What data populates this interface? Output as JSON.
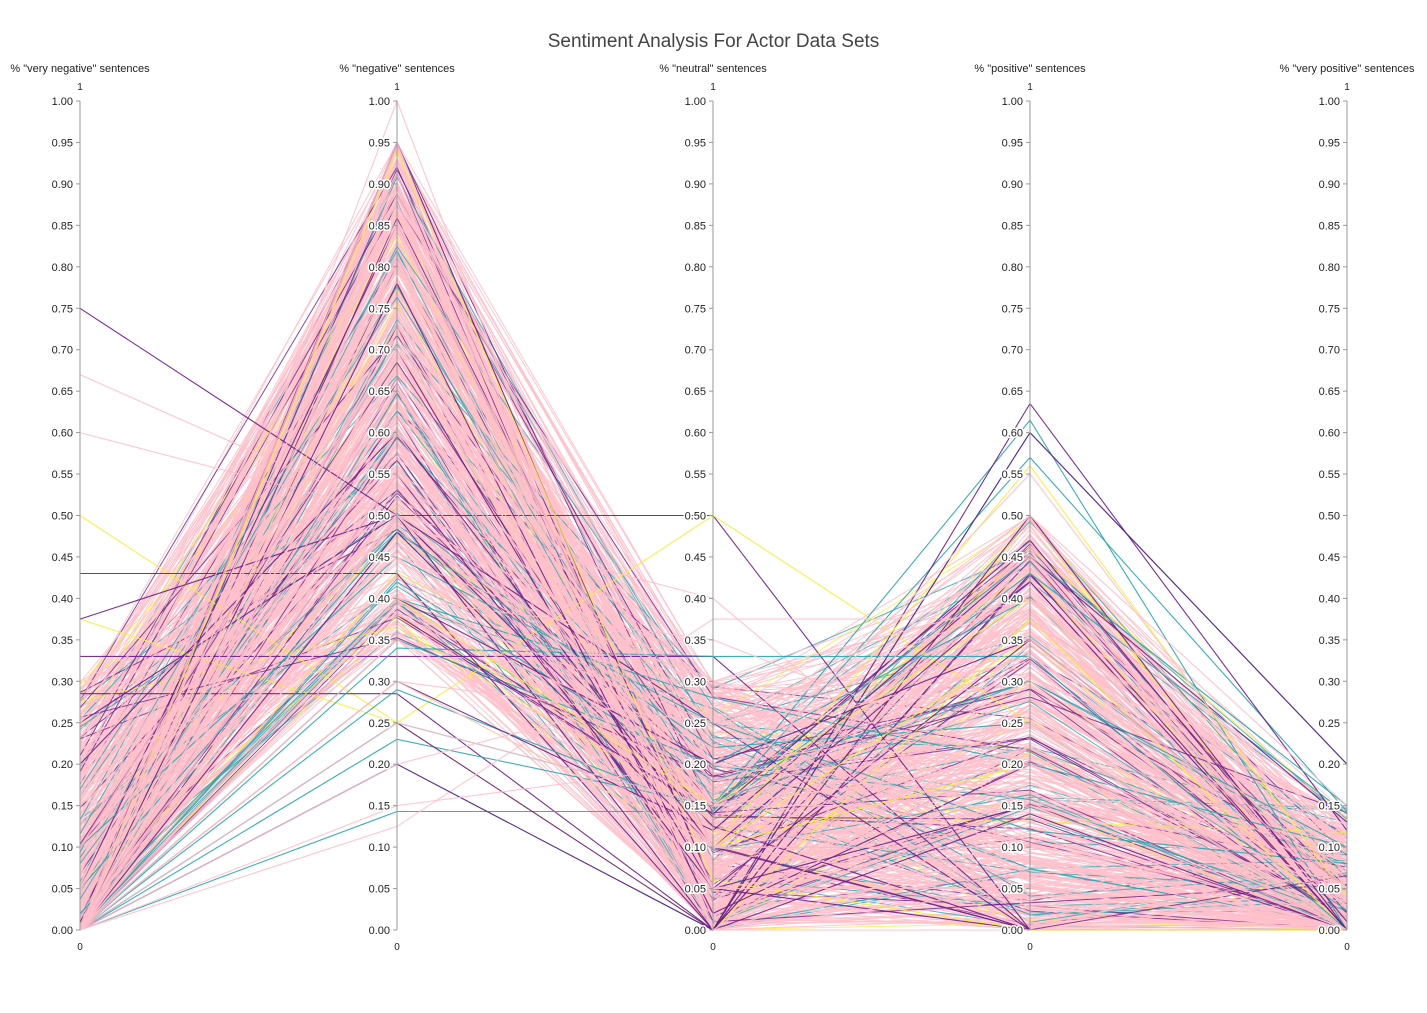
{
  "chart_data": {
    "type": "parallel_coordinates",
    "title": "Sentiment Analysis For Actor Data Sets",
    "dimensions": [
      {
        "label": "% \"very negative\" sentences",
        "range": [
          0,
          1
        ],
        "range_labels": [
          "0",
          "1"
        ]
      },
      {
        "label": "% \"negative\" sentences",
        "range": [
          0,
          1
        ],
        "range_labels": [
          "0",
          "1"
        ]
      },
      {
        "label": "% \"neutral\" sentences",
        "range": [
          0,
          1
        ],
        "range_labels": [
          "0",
          "1"
        ]
      },
      {
        "label": "% \"positive\" sentences",
        "range": [
          0,
          1
        ],
        "range_labels": [
          "0",
          "1"
        ]
      },
      {
        "label": "% \"very positive\" sentences",
        "range": [
          0,
          1
        ],
        "range_labels": [
          "0",
          "1"
        ]
      }
    ],
    "ticks": [
      "0.00",
      "0.05",
      "0.10",
      "0.15",
      "0.20",
      "0.25",
      "0.30",
      "0.35",
      "0.40",
      "0.45",
      "0.50",
      "0.55",
      "0.60",
      "0.65",
      "0.70",
      "0.75",
      "0.80",
      "0.85",
      "0.90",
      "0.95",
      "1.00"
    ],
    "colors": {
      "purple": "#6a1b8a",
      "teal": "#26a6b0",
      "yellow": "#f5f03a",
      "pink": "#ffc0cb"
    },
    "lines": [
      {
        "color": "purple",
        "values": [
          0.75,
          0.5,
          0.5,
          0.0,
          0.0
        ]
      },
      {
        "color": "pink",
        "values": [
          0.67,
          0.5,
          0.3,
          0.1,
          0.05
        ]
      },
      {
        "color": "pink",
        "values": [
          0.6,
          0.5,
          0.4,
          0.08,
          0.02
        ]
      },
      {
        "color": "yellow",
        "values": [
          0.5,
          0.25,
          0.5,
          0.25,
          0.0
        ]
      },
      {
        "color": "purple",
        "values": [
          0.43,
          0.43,
          0.0,
          0.14,
          0.0
        ]
      },
      {
        "color": "yellow",
        "values": [
          0.375,
          0.25,
          0.0,
          0.375,
          0.0
        ]
      },
      {
        "color": "purple",
        "values": [
          0.375,
          0.5,
          0.125,
          0.0,
          0.0
        ]
      },
      {
        "color": "purple",
        "values": [
          0.33,
          0.33,
          0.33,
          0.0,
          0.0
        ]
      },
      {
        "color": "purple",
        "values": [
          0.285,
          0.285,
          0.0,
          0.43,
          0.0
        ]
      },
      {
        "color": "purple",
        "values": [
          0.25,
          0.5,
          0.25,
          0.0,
          0.0
        ]
      },
      {
        "color": "teal",
        "values": [
          0.0,
          0.2,
          0.0,
          0.6,
          0.2
        ]
      },
      {
        "color": "teal",
        "values": [
          0.0,
          0.143,
          0.143,
          0.57,
          0.143
        ]
      },
      {
        "color": "teal",
        "values": [
          0.0,
          0.23,
          0.15,
          0.615,
          0.0
        ]
      },
      {
        "color": "purple",
        "values": [
          0.0,
          0.25,
          0.0,
          0.635,
          0.12
        ]
      },
      {
        "color": "purple",
        "values": [
          0.0,
          0.5,
          0.0,
          0.5,
          0.0
        ]
      },
      {
        "color": "pink",
        "values": [
          0.0,
          0.125,
          0.375,
          0.375,
          0.125
        ]
      },
      {
        "color": "pink",
        "values": [
          0.0,
          1.0,
          0.0,
          0.0,
          0.0
        ]
      },
      {
        "color": "purple",
        "values": [
          0.0,
          0.95,
          0.05,
          0.0,
          0.0
        ]
      },
      {
        "color": "purple",
        "values": [
          0.05,
          0.85,
          0.1,
          0.0,
          0.0
        ]
      },
      {
        "color": "yellow",
        "values": [
          0.0,
          0.94,
          0.06,
          0.0,
          0.0
        ]
      },
      {
        "color": "teal",
        "values": [
          0.0,
          0.34,
          0.33,
          0.33,
          0.0
        ]
      },
      {
        "color": "teal",
        "values": [
          0.05,
          0.48,
          0.22,
          0.25,
          0.0
        ]
      },
      {
        "color": "teal",
        "values": [
          0.1,
          0.45,
          0.25,
          0.12,
          0.08
        ]
      },
      {
        "color": "teal",
        "values": [
          0.0,
          0.42,
          0.18,
          0.3,
          0.1
        ]
      },
      {
        "color": "teal",
        "values": [
          0.0,
          0.29,
          0.14,
          0.43,
          0.14
        ]
      },
      {
        "color": "teal",
        "values": [
          0.0,
          0.35,
          0.2,
          0.4,
          0.05
        ]
      },
      {
        "color": "teal",
        "values": [
          0.02,
          0.4,
          0.28,
          0.2,
          0.1
        ]
      },
      {
        "color": "teal",
        "values": [
          0.0,
          0.25,
          0.15,
          0.45,
          0.15
        ]
      },
      {
        "color": "yellow",
        "values": [
          0.0,
          0.7,
          0.1,
          0.2,
          0.0
        ]
      },
      {
        "color": "yellow",
        "values": [
          0.0,
          0.4,
          0.15,
          0.4,
          0.05
        ]
      },
      {
        "color": "yellow",
        "values": [
          0.0,
          0.5,
          0.1,
          0.35,
          0.05
        ]
      },
      {
        "color": "yellow",
        "values": [
          0.0,
          0.3,
          0.1,
          0.56,
          0.04
        ]
      },
      {
        "color": "yellow",
        "values": [
          0.0,
          0.8,
          0.1,
          0.1,
          0.0
        ]
      },
      {
        "color": "purple",
        "values": [
          0.0,
          0.4,
          0.2,
          0.35,
          0.05
        ]
      },
      {
        "color": "purple",
        "values": [
          0.0,
          0.48,
          0.1,
          0.42,
          0.0
        ]
      },
      {
        "color": "purple",
        "values": [
          0.1,
          0.7,
          0.05,
          0.15,
          0.0
        ]
      },
      {
        "color": "purple",
        "values": [
          0.2,
          0.6,
          0.1,
          0.1,
          0.0
        ]
      },
      {
        "color": "purple",
        "values": [
          0.0,
          0.38,
          0.14,
          0.47,
          0.01
        ]
      },
      {
        "color": "purple",
        "values": [
          0.0,
          0.78,
          0.02,
          0.2,
          0.0
        ]
      },
      {
        "color": "purple",
        "values": [
          0.0,
          0.55,
          0.05,
          0.35,
          0.05
        ]
      },
      {
        "color": "purple",
        "values": [
          0.0,
          0.3,
          0.12,
          0.45,
          0.13
        ]
      },
      {
        "color": "purple",
        "values": [
          0.0,
          0.2,
          0.0,
          0.6,
          0.2
        ]
      },
      {
        "color": "pink",
        "values": [
          0.0,
          0.8,
          0.1,
          0.1,
          0.0
        ]
      },
      {
        "color": "pink",
        "values": [
          0.05,
          0.75,
          0.1,
          0.1,
          0.0
        ]
      },
      {
        "color": "pink",
        "values": [
          0.0,
          0.7,
          0.15,
          0.15,
          0.0
        ]
      },
      {
        "color": "pink",
        "values": [
          0.1,
          0.65,
          0.1,
          0.15,
          0.0
        ]
      },
      {
        "color": "pink",
        "values": [
          0.0,
          0.6,
          0.2,
          0.15,
          0.05
        ]
      },
      {
        "color": "pink",
        "values": [
          0.05,
          0.55,
          0.15,
          0.2,
          0.05
        ]
      },
      {
        "color": "pink",
        "values": [
          0.0,
          0.5,
          0.2,
          0.25,
          0.05
        ]
      },
      {
        "color": "pink",
        "values": [
          0.15,
          0.45,
          0.1,
          0.25,
          0.05
        ]
      },
      {
        "color": "pink",
        "values": [
          0.0,
          0.4,
          0.25,
          0.3,
          0.05
        ]
      },
      {
        "color": "pink",
        "values": [
          0.2,
          0.35,
          0.15,
          0.25,
          0.05
        ]
      },
      {
        "color": "pink",
        "values": [
          0.0,
          0.85,
          0.05,
          0.1,
          0.0
        ]
      },
      {
        "color": "pink",
        "values": [
          0.0,
          0.9,
          0.05,
          0.05,
          0.0
        ]
      },
      {
        "color": "pink",
        "values": [
          0.0,
          0.3,
          0.1,
          0.5,
          0.1
        ]
      },
      {
        "color": "pink",
        "values": [
          0.1,
          0.55,
          0.2,
          0.15,
          0.0
        ]
      },
      {
        "color": "pink",
        "values": [
          0.0,
          0.45,
          0.3,
          0.2,
          0.05
        ]
      },
      {
        "color": "pink",
        "values": [
          0.05,
          0.65,
          0.05,
          0.2,
          0.05
        ]
      },
      {
        "color": "pink",
        "values": [
          0.0,
          0.75,
          0.0,
          0.25,
          0.0
        ]
      },
      {
        "color": "pink",
        "values": [
          0.3,
          0.5,
          0.1,
          0.1,
          0.0
        ]
      },
      {
        "color": "pink",
        "values": [
          0.25,
          0.6,
          0.05,
          0.1,
          0.0
        ]
      },
      {
        "color": "pink",
        "values": [
          0.0,
          0.35,
          0.1,
          0.45,
          0.1
        ]
      },
      {
        "color": "pink",
        "values": [
          0.0,
          0.7,
          0.2,
          0.1,
          0.0
        ]
      },
      {
        "color": "pink",
        "values": [
          0.0,
          0.5,
          0.3,
          0.15,
          0.05
        ]
      },
      {
        "color": "pink",
        "values": [
          0.0,
          0.4,
          0.35,
          0.2,
          0.05
        ]
      },
      {
        "color": "pink",
        "values": [
          0.0,
          0.6,
          0.25,
          0.1,
          0.05
        ]
      },
      {
        "color": "pink",
        "values": [
          0.05,
          0.8,
          0.05,
          0.1,
          0.0
        ]
      },
      {
        "color": "pink",
        "values": [
          0.0,
          0.9,
          0.0,
          0.1,
          0.0
        ]
      },
      {
        "color": "pink",
        "values": [
          0.0,
          0.95,
          0.0,
          0.05,
          0.0
        ]
      },
      {
        "color": "pink",
        "values": [
          0.1,
          0.7,
          0.1,
          0.1,
          0.0
        ]
      },
      {
        "color": "pink",
        "values": [
          0.0,
          0.25,
          0.15,
          0.55,
          0.05
        ]
      },
      {
        "color": "pink",
        "values": [
          0.0,
          0.2,
          0.3,
          0.4,
          0.1
        ]
      },
      {
        "color": "pink",
        "values": [
          0.0,
          0.45,
          0.15,
          0.35,
          0.05
        ]
      },
      {
        "color": "pink",
        "values": [
          0.0,
          0.55,
          0.1,
          0.3,
          0.05
        ]
      },
      {
        "color": "pink",
        "values": [
          0.0,
          0.65,
          0.15,
          0.2,
          0.0
        ]
      },
      {
        "color": "pink",
        "values": [
          0.15,
          0.5,
          0.15,
          0.2,
          0.0
        ]
      },
      {
        "color": "pink",
        "values": [
          0.0,
          0.3,
          0.25,
          0.4,
          0.05
        ]
      },
      {
        "color": "pink",
        "values": [
          0.0,
          0.85,
          0.1,
          0.05,
          0.0
        ]
      },
      {
        "color": "pink",
        "values": [
          0.0,
          0.15,
          0.2,
          0.5,
          0.15
        ]
      },
      {
        "color": "pink",
        "values": [
          0.0,
          0.38,
          0.22,
          0.33,
          0.07
        ]
      },
      {
        "color": "pink",
        "values": [
          0.0,
          0.62,
          0.12,
          0.22,
          0.04
        ]
      },
      {
        "color": "pink",
        "values": [
          0.05,
          0.72,
          0.08,
          0.15,
          0.0
        ]
      },
      {
        "color": "pink",
        "values": [
          0.0,
          0.52,
          0.18,
          0.27,
          0.03
        ]
      }
    ]
  }
}
